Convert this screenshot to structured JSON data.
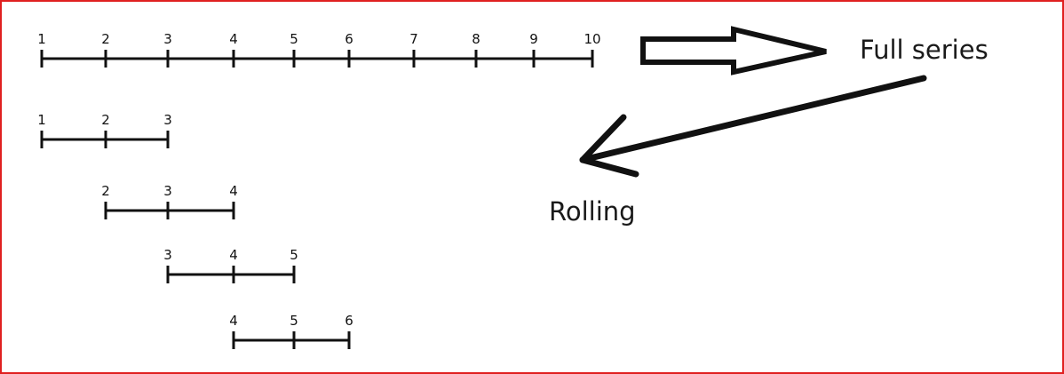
{
  "colors": {
    "frame_border": "#e02020",
    "ink": "#111111",
    "annotation_text": "#1a1a1a",
    "background": "#ffffff"
  },
  "full_series": {
    "values": [
      1,
      2,
      3,
      4,
      5,
      6,
      7,
      8,
      9,
      10
    ],
    "labels": [
      "1",
      "2",
      "3",
      "4",
      "5",
      "6",
      "7",
      "8",
      "9",
      "10"
    ]
  },
  "windows": [
    {
      "values": [
        1,
        2,
        3
      ],
      "labels": [
        "1",
        "2",
        "3"
      ]
    },
    {
      "values": [
        2,
        3,
        4
      ],
      "labels": [
        "2",
        "3",
        "4"
      ]
    },
    {
      "values": [
        3,
        4,
        5
      ],
      "labels": [
        "3",
        "4",
        "5"
      ]
    },
    {
      "values": [
        4,
        5,
        6
      ],
      "labels": [
        "4",
        "5",
        "6"
      ]
    }
  ],
  "annotations": {
    "full_series_label": "Full series",
    "rolling_label": "Rolling"
  },
  "icons": {
    "full_series_arrow": "hollow-right-arrow-icon",
    "rolling_arrow": "left-pointing-arrow-icon"
  }
}
